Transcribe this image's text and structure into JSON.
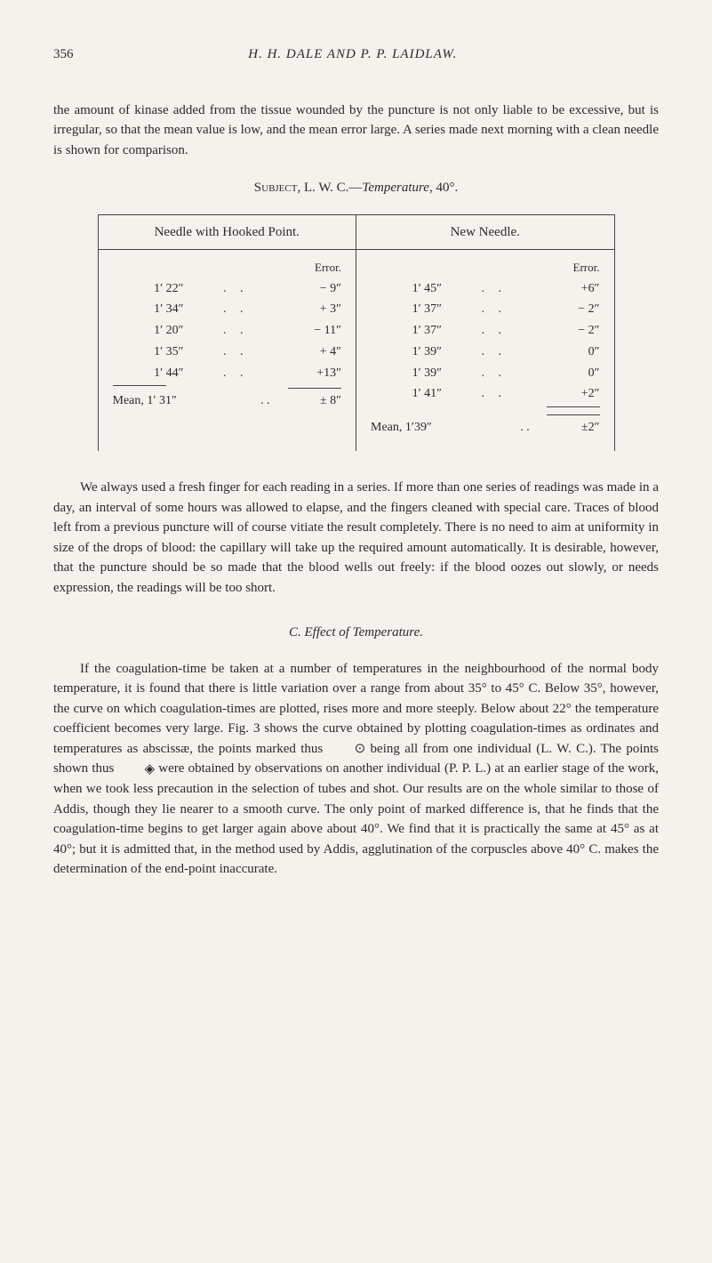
{
  "header": {
    "page_number": "356",
    "running_title": "H. H. DALE AND P. P. LAIDLAW."
  },
  "intro_paragraph": "the amount of kinase added from the tissue wounded by the puncture is not only liable to be excessive, but is irregular, so that the mean value is low, and the mean error large. A series made next morning with a clean needle is shown for comparison.",
  "subject_line_prefix": "Subject, L. W. C.—",
  "subject_line_italic": "Temperature",
  "subject_line_suffix": ", 40°.",
  "table": {
    "left_header": "Needle with Hooked Point.",
    "right_header": "New Needle.",
    "error_label": "Error.",
    "left": {
      "rows": [
        {
          "time": "1′ 22″",
          "err": "− 9″"
        },
        {
          "time": "1′ 34″",
          "err": "+ 3″"
        },
        {
          "time": "1′ 20″",
          "err": "− 11″"
        },
        {
          "time": "1′ 35″",
          "err": "+ 4″"
        },
        {
          "time": "1′ 44″",
          "err": "+13″"
        }
      ],
      "mean_label": "Mean, 1′ 31″",
      "mean_err": "± 8″"
    },
    "right": {
      "rows": [
        {
          "time": "1′ 45″",
          "err": "+6″"
        },
        {
          "time": "1′ 37″",
          "err": "− 2″"
        },
        {
          "time": "1′ 37″",
          "err": "− 2″"
        },
        {
          "time": "1′ 39″",
          "err": "0″"
        },
        {
          "time": "1′ 39″",
          "err": "0″"
        },
        {
          "time": "1′ 41″",
          "err": "+2″"
        }
      ],
      "mean_label": "Mean, 1′39″",
      "mean_err": "±2″"
    }
  },
  "para_after_table": "We always used a fresh finger for each reading in a series. If more than one series of readings was made in a day, an interval of some hours was allowed to elapse, and the fingers cleaned with special care. Traces of blood left from a previous puncture will of course vitiate the result completely. There is no need to aim at uniformity in size of the drops of blood: the capillary will take up the required amount automatically. It is desirable, however, that the puncture should be so made that the blood wells out freely: if the blood oozes out slowly, or needs expression, the readings will be too short.",
  "section_c_heading": "C. Effect of Temperature.",
  "para_c_part1": "If the coagulation-time be taken at a number of temperatures in the neighbourhood of the normal body temperature, it is found that there is little variation over a range from about 35° to 45° C. Below 35°, however, the curve on which coagulation-times are plotted, rises more and more steeply. Below about 22° the temperature coefficient becomes very large. Fig. 3 shows the curve obtained by plotting coagulation-times as ordinates and temperatures as abscissæ, the points marked thus ",
  "symbol1": "⊙",
  "para_c_part2": " being all from one individual (L. W. C.). The points shown thus ",
  "symbol2": "◈",
  "para_c_part3": " were obtained by observations on another individual (P. P. L.) at an earlier stage of the work, when we took less precaution in the selection of tubes and shot. Our results are on the whole similar to those of Addis, though they lie nearer to a smooth curve. The only point of marked difference is, that he finds that the coagulation-time begins to get larger again above about 40°. We find that it is practically the same at 45° as at 40°; but it is admitted that, in the method used by Addis, agglutination of the corpuscles above 40° C. makes the determination of the end-point inaccurate."
}
